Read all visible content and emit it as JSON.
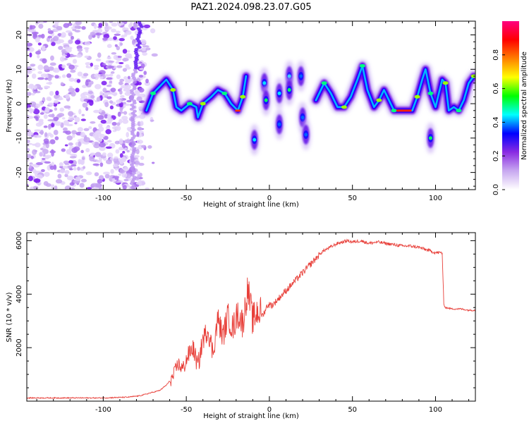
{
  "title": "PAZ1.2024.098.23.07.G05",
  "chart_data": [
    {
      "type": "heatmap",
      "xlabel": "Height of straight line (km)",
      "ylabel": "Frequency (Hz)",
      "xlim": [
        -146,
        124
      ],
      "ylim": [
        -25,
        24
      ],
      "xticks": [
        -100,
        -50,
        0,
        50,
        100
      ],
      "yticks": [
        -20,
        -10,
        0,
        10,
        20
      ],
      "colorbar": {
        "label": "Normalized spectral amplitude",
        "range": [
          0,
          1
        ],
        "ticks": [
          "0.0",
          "0.2",
          "0.4",
          "0.6",
          "0.8"
        ],
        "colors": [
          "#ffffff",
          "#c8a8f0",
          "#8a2be2",
          "#0000ff",
          "#00ffff",
          "#00ff00",
          "#ffff00",
          "#ff8000",
          "#ff0000",
          "#ff0080"
        ]
      },
      "noise_region": {
        "x": [
          -146,
          -75
        ],
        "y": [
          -25,
          24
        ]
      },
      "ridge": [
        {
          "x": -74,
          "y": -2
        },
        {
          "x": -70,
          "y": 3
        },
        {
          "x": -66,
          "y": 5
        },
        {
          "x": -62,
          "y": 7
        },
        {
          "x": -58,
          "y": 4
        },
        {
          "x": -56,
          "y": -1
        },
        {
          "x": -53,
          "y": -2
        },
        {
          "x": -48,
          "y": 0
        },
        {
          "x": -44,
          "y": -1
        },
        {
          "x": -43,
          "y": -4
        },
        {
          "x": -40,
          "y": 0
        },
        {
          "x": -35,
          "y": 2
        },
        {
          "x": -31,
          "y": 4
        },
        {
          "x": -27,
          "y": 3
        },
        {
          "x": -23,
          "y": 0
        },
        {
          "x": -19,
          "y": -2
        },
        {
          "x": -16,
          "y": 2
        },
        {
          "x": -14,
          "y": 8
        }
      ],
      "blobs": [
        {
          "x": -9,
          "y": -10.5,
          "amp": 0.5
        },
        {
          "x": -3,
          "y": 6,
          "amp": 0.45
        },
        {
          "x": -2,
          "y": 1,
          "amp": 0.55
        },
        {
          "x": 6,
          "y": 3,
          "amp": 0.45
        },
        {
          "x": 6,
          "y": -6,
          "amp": 0.35
        },
        {
          "x": 12,
          "y": 8,
          "amp": 0.45
        },
        {
          "x": 12,
          "y": 4,
          "amp": 0.6
        },
        {
          "x": 19,
          "y": 8,
          "amp": 0.4
        },
        {
          "x": 20,
          "y": -4,
          "amp": 0.35
        },
        {
          "x": 22,
          "y": -9,
          "amp": 0.3
        },
        {
          "x": 97,
          "y": -10,
          "amp": 0.55
        }
      ],
      "ridge2": [
        {
          "x": 28,
          "y": 1
        },
        {
          "x": 33,
          "y": 6
        },
        {
          "x": 37,
          "y": 3
        },
        {
          "x": 41,
          "y": -1
        },
        {
          "x": 45,
          "y": -1
        },
        {
          "x": 49,
          "y": 2
        },
        {
          "x": 53,
          "y": 7
        },
        {
          "x": 56,
          "y": 11
        },
        {
          "x": 59,
          "y": 4
        },
        {
          "x": 63,
          "y": -1
        },
        {
          "x": 66,
          "y": 1
        },
        {
          "x": 69,
          "y": 4
        },
        {
          "x": 72,
          "y": 1
        },
        {
          "x": 75,
          "y": -2
        },
        {
          "x": 80,
          "y": -2
        },
        {
          "x": 86,
          "y": -2
        },
        {
          "x": 89,
          "y": 2
        },
        {
          "x": 92,
          "y": 7
        },
        {
          "x": 94,
          "y": 10
        },
        {
          "x": 97,
          "y": 3
        },
        {
          "x": 100,
          "y": -1
        },
        {
          "x": 104,
          "y": 7
        },
        {
          "x": 106,
          "y": 6
        },
        {
          "x": 108,
          "y": -2
        },
        {
          "x": 111,
          "y": -1
        },
        {
          "x": 114,
          "y": -2
        },
        {
          "x": 117,
          "y": 1
        },
        {
          "x": 120,
          "y": 6
        },
        {
          "x": 123,
          "y": 8
        }
      ]
    },
    {
      "type": "line",
      "xlabel": "Height of straight line (km)",
      "ylabel": "SNR (10 * v/v)",
      "xlim": [
        -146,
        124
      ],
      "ylim": [
        0,
        6300
      ],
      "xticks": [
        -100,
        -50,
        0,
        50,
        100
      ],
      "yticks": [
        2000,
        4000,
        6000
      ],
      "line_color": "#e8403a",
      "series": [
        {
          "x": [
            -146,
            -120,
            -100,
            -85,
            -78,
            -72,
            -66,
            -62,
            -58,
            -55,
            -52,
            -49,
            -46,
            -43,
            -40,
            -37,
            -34,
            -31,
            -28,
            -25,
            -22,
            -19,
            -16,
            -13,
            -10,
            -7,
            -4,
            -1,
            2,
            5,
            8,
            11,
            14,
            17,
            20,
            23,
            26,
            29,
            32,
            35,
            38,
            41,
            44,
            47,
            50,
            55,
            60,
            65,
            70,
            75,
            80,
            85,
            90,
            95,
            100,
            104,
            105,
            106,
            110,
            115,
            120,
            124
          ],
          "y": [
            120,
            120,
            120,
            150,
            200,
            300,
            400,
            600,
            900,
            1400,
            1200,
            1700,
            2000,
            1300,
            2300,
            2700,
            1800,
            3100,
            2400,
            3200,
            2700,
            3300,
            2900,
            4200,
            3000,
            3400,
            3200,
            3600,
            3600,
            3800,
            4000,
            4200,
            4400,
            4600,
            4800,
            5000,
            5200,
            5400,
            5600,
            5700,
            5800,
            5900,
            5950,
            6000,
            5950,
            6000,
            5900,
            5950,
            5900,
            5850,
            5800,
            5800,
            5750,
            5650,
            5550,
            5550,
            3600,
            3500,
            3450,
            3450,
            3400,
            3400
          ]
        }
      ]
    }
  ]
}
